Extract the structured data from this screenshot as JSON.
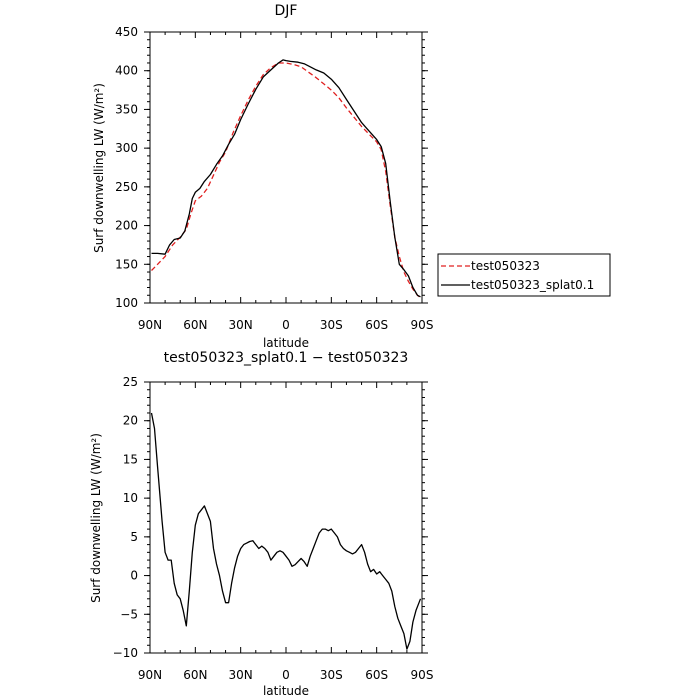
{
  "chart_data": [
    {
      "type": "line",
      "title": "DJF",
      "xlabel": "latitude",
      "ylabel": "Surf downwelling LW (W/m²)",
      "xlim": [
        90,
        -90
      ],
      "ylim": [
        100,
        450
      ],
      "xticks": [
        90,
        60,
        30,
        0,
        -30,
        -60,
        -90
      ],
      "xtick_labels": [
        "90N",
        "60N",
        "30N",
        "0",
        "30S",
        "60S",
        "90S"
      ],
      "yticks": [
        100,
        150,
        200,
        250,
        300,
        350,
        400,
        450
      ],
      "ytick_labels": [
        "100",
        "150",
        "200",
        "250",
        "300",
        "350",
        "400",
        "450"
      ],
      "legend_position": "right",
      "series": [
        {
          "name": "test050323",
          "color": "#e02020",
          "dash": "dashed",
          "x": [
            89,
            85,
            80,
            75,
            70,
            66,
            63,
            60,
            56,
            52,
            48,
            44,
            40,
            35,
            30,
            25,
            20,
            15,
            10,
            5,
            0,
            -5,
            -10,
            -15,
            -20,
            -25,
            -30,
            -35,
            -40,
            -45,
            -50,
            -55,
            -60,
            -63,
            -66,
            -69,
            -72,
            -75,
            -78,
            -81,
            -84,
            -87,
            -89
          ],
          "y": [
            142,
            150,
            160,
            175,
            185,
            195,
            215,
            232,
            238,
            248,
            265,
            282,
            295,
            320,
            342,
            362,
            380,
            395,
            404,
            410,
            410,
            408,
            405,
            398,
            391,
            383,
            375,
            365,
            352,
            340,
            328,
            318,
            308,
            298,
            270,
            225,
            185,
            160,
            140,
            128,
            118,
            110,
            107
          ]
        },
        {
          "name": "test050323_splat0.1",
          "color": "#000000",
          "dash": "solid",
          "x": [
            89,
            85,
            80,
            77,
            74,
            70,
            67,
            64,
            62,
            60,
            57,
            54,
            50,
            46,
            42,
            38,
            34,
            30,
            25,
            20,
            15,
            10,
            5,
            2,
            0,
            -3,
            -8,
            -12,
            -16,
            -20,
            -25,
            -30,
            -35,
            -40,
            -45,
            -50,
            -55,
            -60,
            -63,
            -66,
            -69,
            -72,
            -75,
            -78,
            -81,
            -84,
            -87,
            -89
          ],
          "y": [
            164,
            164,
            163,
            175,
            182,
            184,
            193,
            215,
            235,
            243,
            248,
            257,
            266,
            279,
            290,
            305,
            318,
            337,
            357,
            376,
            392,
            401,
            410,
            414,
            413,
            412,
            411,
            409,
            405,
            401,
            397,
            389,
            378,
            363,
            348,
            333,
            322,
            311,
            302,
            280,
            230,
            185,
            150,
            143,
            135,
            120,
            110,
            108
          ]
        }
      ]
    },
    {
      "type": "line",
      "title": "test050323_splat0.1 − test050323",
      "xlabel": "latitude",
      "ylabel": "Surf downwelling LW (W/m²)",
      "xlim": [
        90,
        -90
      ],
      "ylim": [
        -10,
        25
      ],
      "xticks": [
        90,
        60,
        30,
        0,
        -30,
        -60,
        -90
      ],
      "xtick_labels": [
        "90N",
        "60N",
        "30N",
        "0",
        "30S",
        "60S",
        "90S"
      ],
      "yticks": [
        -10,
        -5,
        0,
        5,
        10,
        15,
        20,
        25
      ],
      "ytick_labels": [
        "−10",
        "−5",
        "0",
        "5",
        "10",
        "15",
        "20",
        "25"
      ],
      "series": [
        {
          "color": "#000000",
          "dash": "solid",
          "x": [
            89,
            87,
            85,
            82,
            80,
            78,
            76,
            74,
            72,
            70,
            68,
            66,
            64,
            62,
            60,
            58,
            56,
            54,
            52,
            50,
            48,
            46,
            44,
            42,
            40,
            38,
            36,
            34,
            32,
            30,
            28,
            26,
            24,
            22,
            20,
            18,
            16,
            14,
            12,
            10,
            8,
            6,
            4,
            2,
            0,
            -2,
            -4,
            -6,
            -8,
            -10,
            -12,
            -14,
            -16,
            -18,
            -20,
            -22,
            -24,
            -26,
            -28,
            -30,
            -32,
            -34,
            -36,
            -38,
            -40,
            -42,
            -44,
            -46,
            -48,
            -50,
            -52,
            -54,
            -56,
            -58,
            -60,
            -62,
            -64,
            -66,
            -68,
            -70,
            -72,
            -74,
            -76,
            -78,
            -80,
            -82,
            -84,
            -86,
            -88,
            -89
          ],
          "y": [
            21,
            19,
            14,
            7,
            3,
            2,
            2,
            -1,
            -2.5,
            -3,
            -4.5,
            -6.5,
            -2,
            3,
            6.5,
            8,
            8.5,
            9,
            8,
            7,
            3.5,
            1.5,
            0,
            -2,
            -3.5,
            -3.5,
            -1,
            1,
            2.5,
            3.5,
            4,
            4.2,
            4.4,
            4.5,
            4,
            3.5,
            3.8,
            3.5,
            3,
            2,
            2.5,
            3,
            3.2,
            3,
            2.5,
            2,
            1.2,
            1.4,
            1.8,
            2.2,
            1.8,
            1.2,
            2.5,
            3.5,
            4.5,
            5.5,
            6,
            6,
            5.8,
            6,
            5.5,
            5,
            4,
            3.5,
            3.2,
            3,
            2.8,
            3,
            3.5,
            4,
            3,
            1.5,
            0.5,
            0.8,
            0.2,
            0.5,
            0,
            -0.5,
            -1,
            -2,
            -4,
            -5.5,
            -6.5,
            -7.5,
            -9.5,
            -8.5,
            -6,
            -4.5,
            -3.5,
            -3
          ]
        }
      ]
    }
  ]
}
